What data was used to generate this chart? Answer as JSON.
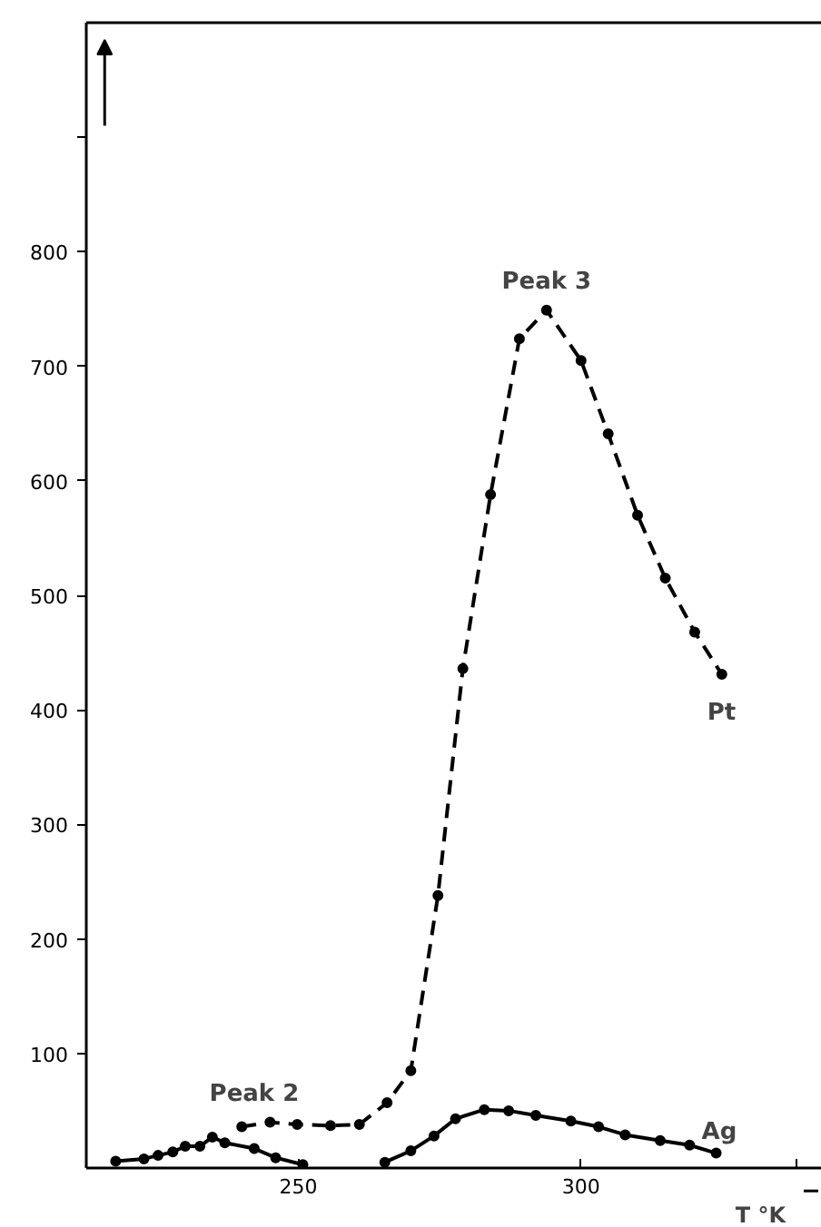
{
  "chart_data": {
    "type": "line",
    "xlabel": "T °K",
    "xlim": [
      212.5,
      342.6
    ],
    "xticks": [
      250,
      300,
      {
        "value": 338,
        "label": null
      }
    ],
    "ylim": [
      0,
      1000
    ],
    "yticks": [
      100,
      200,
      300,
      400,
      500,
      600,
      700,
      800,
      {
        "value": 900,
        "label": null
      }
    ],
    "grid": false,
    "marker": "circle",
    "series": [
      {
        "name": "Pt",
        "color": "#000000",
        "line_style": "dashed",
        "x": [
          240.0,
          245.0,
          249.8,
          255.7,
          260.8,
          265.7,
          269.9,
          274.7,
          279.1,
          284.0,
          289.1,
          293.9,
          300.0,
          304.8,
          310.0,
          314.9,
          320.1,
          324.9
        ],
        "values": [
          36,
          40,
          38,
          37,
          38,
          57,
          85,
          238,
          436,
          588,
          724,
          749,
          705,
          641,
          570,
          515,
          468,
          431
        ]
      },
      {
        "name": "Ag",
        "color": "#000000",
        "line_style": "solid",
        "x": [
          217.7,
          222.7,
          225.2,
          227.8,
          230.0,
          232.6,
          234.8,
          237.0,
          242.2,
          246.0,
          250.8,
          258.0,
          265.3,
          269.9,
          274.0,
          277.8,
          282.9,
          287.2,
          292.0,
          298.2,
          303.1,
          307.8,
          314.0,
          319.2,
          323.9
        ],
        "values": [
          6,
          8,
          11,
          14,
          19,
          19,
          27,
          22,
          17,
          9,
          3,
          null,
          5,
          15,
          28,
          43,
          51,
          50,
          46,
          41,
          36,
          29,
          24,
          20,
          13
        ]
      }
    ],
    "annotations": [
      {
        "text": "Peak 3",
        "x": 293.9,
        "y": 749
      },
      {
        "text": "Peak 2",
        "x": 242.2,
        "y": 40
      }
    ]
  }
}
